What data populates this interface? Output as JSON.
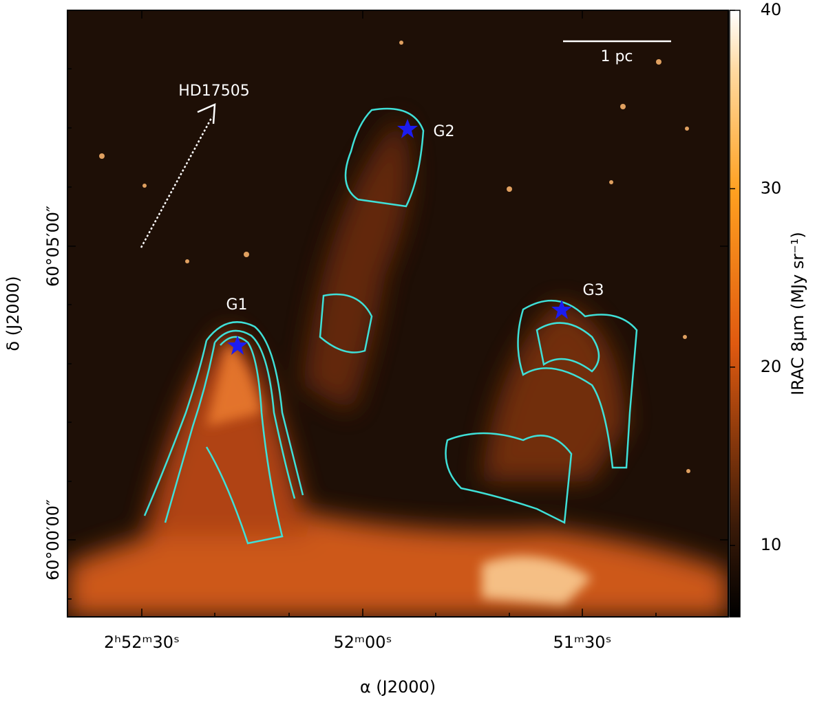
{
  "figure": {
    "x_axis": {
      "label": "α (J2000)",
      "tick_labels": [
        "2ʰ52ᵐ30ˢ",
        "52ᵐ00ˢ",
        "51ᵐ30ˢ"
      ]
    },
    "y_axis": {
      "label": "δ (J2000)",
      "tick_labels": [
        "60°05′00″",
        "60°00′00″"
      ]
    },
    "colorbar": {
      "label": "IRAC 8μm (MJy sr⁻¹)",
      "lim": [
        6,
        40
      ],
      "ticks": [
        10,
        20,
        30,
        40
      ]
    },
    "annotations": {
      "star": "HD17505",
      "scale": "1 pc",
      "g1": "G1",
      "g2": "G2",
      "g3": "G3"
    }
  }
}
